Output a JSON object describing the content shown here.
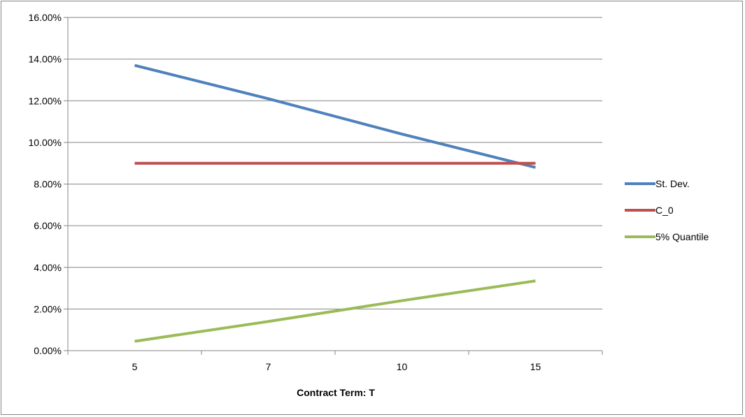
{
  "chart_data": {
    "type": "line",
    "categories": [
      "5",
      "7",
      "10",
      "15"
    ],
    "xlabel": "Contract Term: T",
    "ylabel": "",
    "ylim": [
      0,
      0.16
    ],
    "yticks": [
      "0.00%",
      "2.00%",
      "4.00%",
      "6.00%",
      "8.00%",
      "10.00%",
      "12.00%",
      "14.00%",
      "16.00%"
    ],
    "grid": "horizontal",
    "legend_position": "right",
    "series": [
      {
        "name": "St. Dev.",
        "values": [
          0.137,
          0.121,
          0.104,
          0.088
        ],
        "color": "#4F81BD"
      },
      {
        "name": "C_0",
        "values": [
          0.09,
          0.09,
          0.09,
          0.09
        ],
        "color": "#C0504D"
      },
      {
        "name": "5% Quantile",
        "values": [
          0.0045,
          0.014,
          0.024,
          0.0335
        ],
        "color": "#9BBB59"
      }
    ]
  }
}
